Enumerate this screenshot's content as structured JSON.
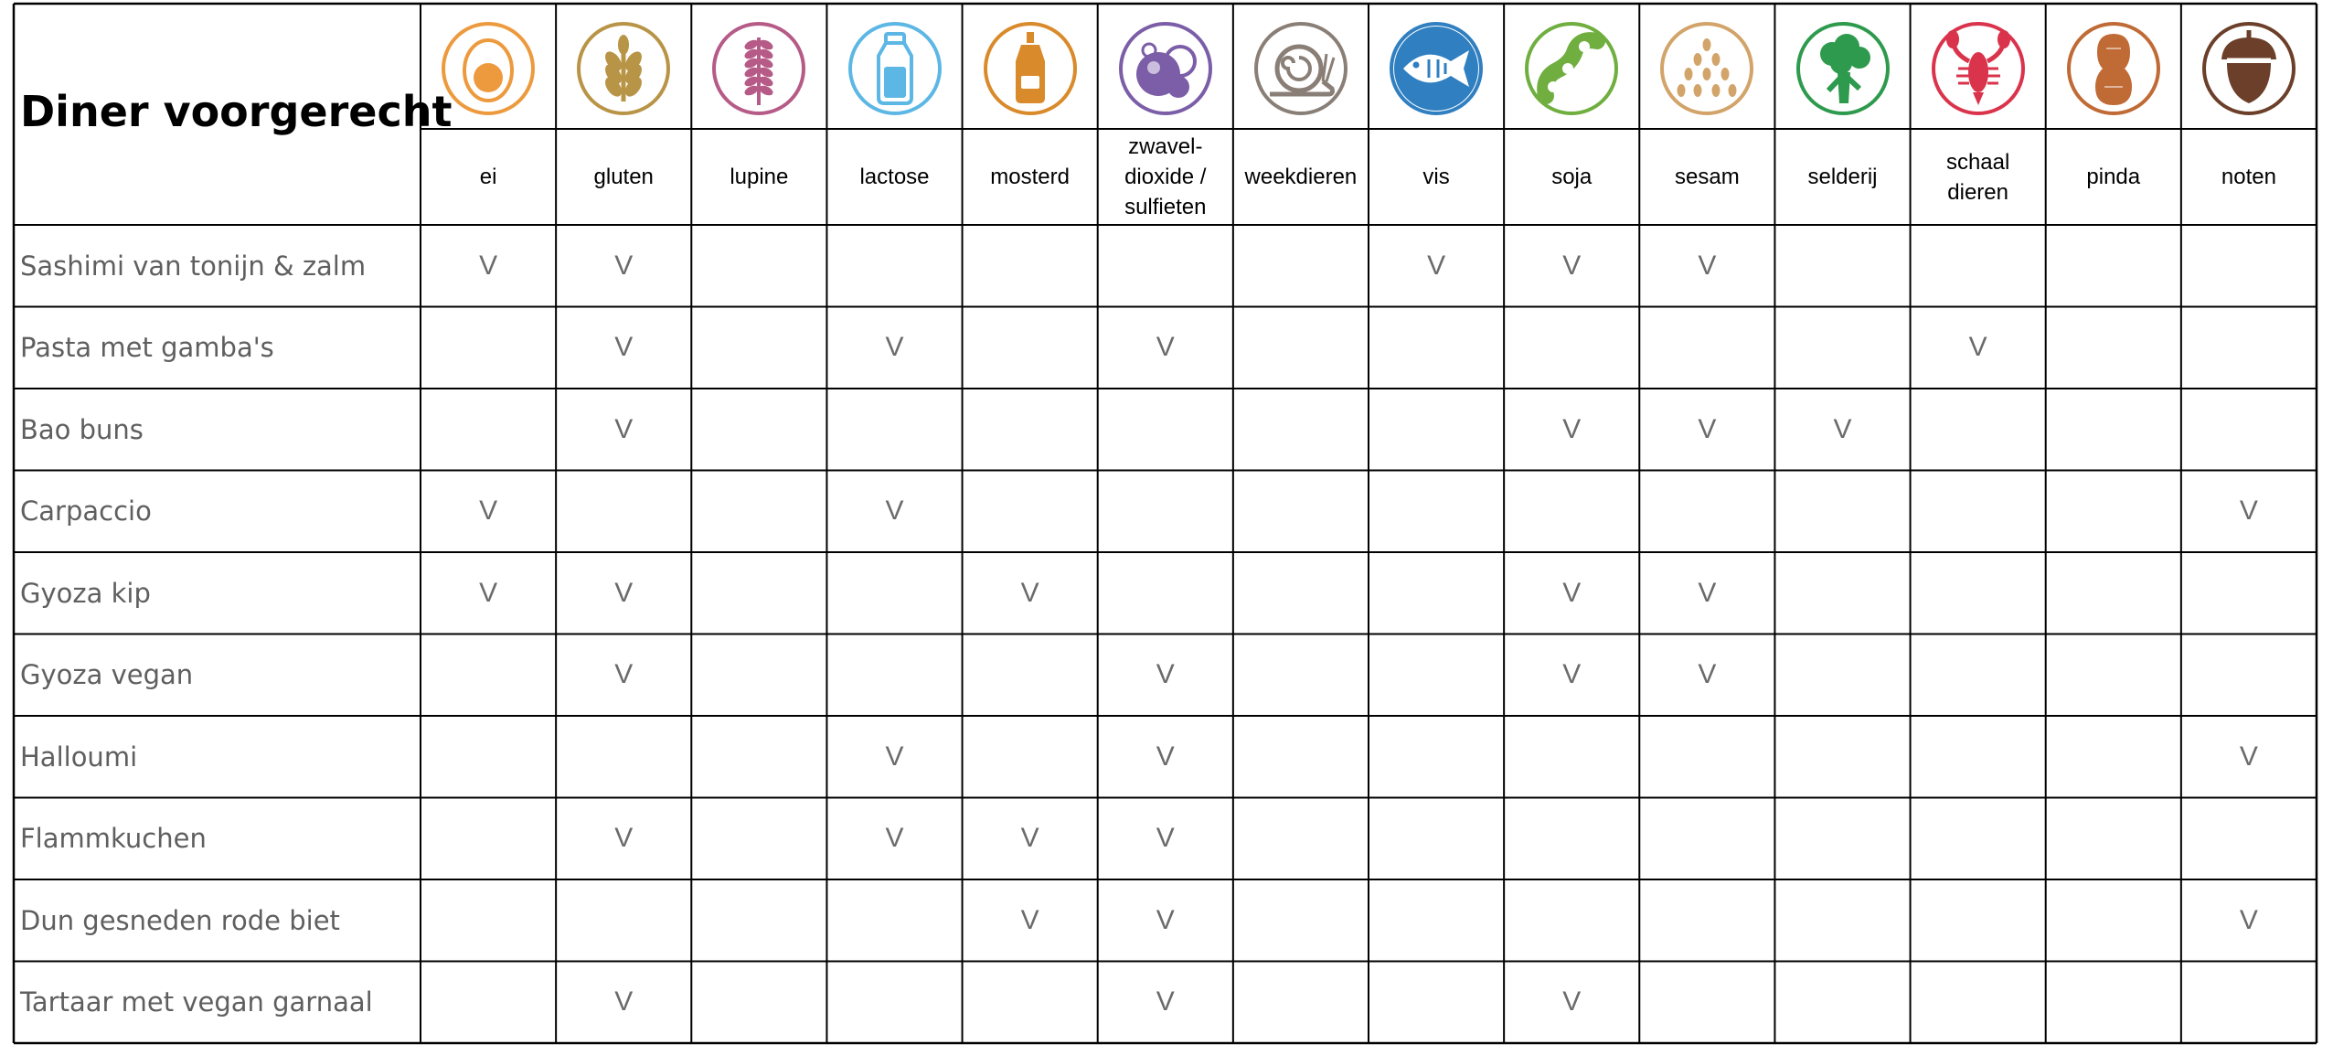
{
  "title": "Diner voorgerecht",
  "allergens": [
    {
      "label": "ei",
      "icon": "egg-icon",
      "color": "#ED9A3E"
    },
    {
      "label": "gluten",
      "icon": "wheat-icon",
      "color": "#B89447"
    },
    {
      "label": "lupine",
      "icon": "lupine-icon",
      "color": "#B65B87"
    },
    {
      "label": "lactose",
      "icon": "milk-bottle-icon",
      "color": "#5DB7E5"
    },
    {
      "label": "mosterd",
      "icon": "mustard-bottle-icon",
      "color": "#D98A2B"
    },
    {
      "label": "zwavel-\ndioxide /\nsulfieten",
      "icon": "sulphite-bubbles-icon",
      "color": "#7B5EA7"
    },
    {
      "label": "weekdieren",
      "icon": "snail-icon",
      "color": "#8A7F76"
    },
    {
      "label": "vis",
      "icon": "fish-icon",
      "color": "#2F7FC1"
    },
    {
      "label": "soja",
      "icon": "soy-pod-icon",
      "color": "#6FAE3F"
    },
    {
      "label": "sesam",
      "icon": "sesame-seeds-icon",
      "color": "#D2A46A"
    },
    {
      "label": "selderij",
      "icon": "celery-icon",
      "color": "#2E9A4E"
    },
    {
      "label": "schaal\ndieren",
      "icon": "lobster-icon",
      "color": "#D9344C"
    },
    {
      "label": "pinda",
      "icon": "peanut-icon",
      "color": "#C06A36"
    },
    {
      "label": "noten",
      "icon": "acorn-icon",
      "color": "#6B3F2A"
    }
  ],
  "mark": "V",
  "dishes": [
    {
      "name": "Sashimi van tonijn & zalm",
      "marks": [
        "V",
        "V",
        "",
        "",
        "",
        "",
        "",
        "V",
        "V",
        "V",
        "",
        "",
        "",
        ""
      ]
    },
    {
      "name": "Pasta met gamba's",
      "marks": [
        "",
        "V",
        "",
        "V",
        "",
        "V",
        "",
        "",
        "",
        "",
        "",
        "V",
        "",
        ""
      ]
    },
    {
      "name": "Bao buns",
      "marks": [
        "",
        "V",
        "",
        "",
        "",
        "",
        "",
        "",
        "V",
        "V",
        "V",
        "",
        "",
        ""
      ]
    },
    {
      "name": "Carpaccio",
      "marks": [
        "V",
        "",
        "",
        "V",
        "",
        "",
        "",
        "",
        "",
        "",
        "",
        "",
        "",
        "V"
      ]
    },
    {
      "name": "Gyoza kip",
      "marks": [
        "V",
        "V",
        "",
        "",
        "V",
        "",
        "",
        "",
        "V",
        "V",
        "",
        "",
        "",
        ""
      ]
    },
    {
      "name": "Gyoza vegan",
      "marks": [
        "",
        "V",
        "",
        "",
        "",
        "V",
        "",
        "",
        "V",
        "V",
        "",
        "",
        "",
        ""
      ]
    },
    {
      "name": "Halloumi",
      "marks": [
        "",
        "",
        "",
        "V",
        "",
        "V",
        "",
        "",
        "",
        "",
        "",
        "",
        "",
        "V"
      ]
    },
    {
      "name": "Flammkuchen",
      "marks": [
        "",
        "V",
        "",
        "V",
        "V",
        "V",
        "",
        "",
        "",
        "",
        "",
        "",
        "",
        ""
      ]
    },
    {
      "name": "Dun gesneden rode biet",
      "marks": [
        "",
        "",
        "",
        "",
        "V",
        "V",
        "",
        "",
        "",
        "",
        "",
        "",
        "",
        "V"
      ]
    },
    {
      "name": "Tartaar met vegan garnaal",
      "marks": [
        "",
        "V",
        "",
        "",
        "",
        "V",
        "",
        "",
        "V",
        "",
        "",
        "",
        "",
        ""
      ]
    }
  ]
}
